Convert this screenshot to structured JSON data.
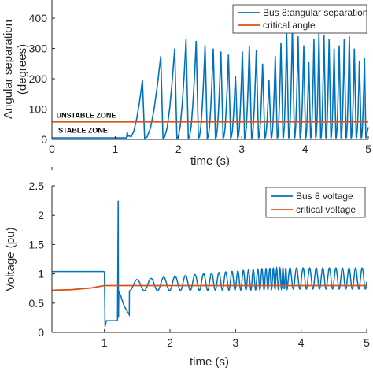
{
  "colors": {
    "angle": "#0072BD",
    "critical": "#D95319",
    "axis": "#262626"
  },
  "chart_data": [
    {
      "type": "line",
      "xlabel": "time (s)",
      "ylabel": "Angular separation (degrees)",
      "ylabel_lines": [
        "Angular separation",
        "(degrees)"
      ],
      "xlim": [
        0,
        5
      ],
      "ylim": [
        0,
        460
      ],
      "xticks": [
        0,
        1,
        2,
        3,
        4,
        5
      ],
      "yticks": [
        0,
        100,
        200,
        300,
        400
      ],
      "legend": "top-right",
      "annotations": [
        {
          "text": "UNSTABLE ZONE",
          "x": 0.02,
          "y": 82
        },
        {
          "text": "STABLE ZONE",
          "x": 0.05,
          "y": 32
        }
      ],
      "series": [
        {
          "name": "Bus 8:angular separation",
          "x_start": 0,
          "x_end": 5,
          "baseline": 5,
          "fault_time": 1.2,
          "peak_times": [
            1.43,
            1.72,
            1.94,
            2.12,
            2.28,
            2.42,
            2.55,
            2.67,
            2.79,
            2.9,
            3.01,
            3.12,
            3.23,
            3.33,
            3.43,
            3.53,
            3.62,
            3.71,
            3.8,
            3.89,
            3.98,
            4.06,
            4.14,
            4.22,
            4.3,
            4.38,
            4.46,
            4.54,
            4.62,
            4.7,
            4.78,
            4.86,
            4.94
          ],
          "peak_values": [
            195,
            275,
            300,
            330,
            325,
            310,
            300,
            290,
            280,
            210,
            290,
            310,
            295,
            250,
            195,
            275,
            320,
            350,
            370,
            340,
            310,
            255,
            330,
            350,
            345,
            330,
            300,
            310,
            330,
            340,
            300,
            260,
            270
          ]
        },
        {
          "name": "critical angle",
          "x": [
            0,
            5
          ],
          "values": [
            58,
            58
          ]
        }
      ]
    },
    {
      "type": "line",
      "xlabel": "time (s)",
      "ylabel": "Voltage (pu)",
      "xlim": [
        0.2,
        5
      ],
      "ylim": [
        0,
        2.5
      ],
      "xticks": [
        1,
        2,
        3,
        4,
        5
      ],
      "yticks": [
        0,
        0.5,
        1,
        1.5,
        2,
        2.5
      ],
      "legend": "top-right",
      "series": [
        {
          "name": "Bus 8 voltage",
          "x": [
            0.2,
            0.99,
            1.0,
            1.01,
            1.03,
            1.2,
            1.21,
            1.215,
            1.22,
            1.25,
            1.3,
            1.38
          ],
          "values": [
            1.04,
            1.04,
            1.03,
            0.1,
            0.2,
            0.2,
            2.25,
            0.25,
            0.7,
            0.62,
            0.45,
            0.3
          ],
          "oscillation_center": 0.8,
          "amplitude_start": 0.18,
          "amplitude_end": 0.36,
          "oscillation_start": 1.38
        },
        {
          "name": "critical voltage",
          "x": [
            0.2,
            0.5,
            0.8,
            1.0,
            5.0
          ],
          "values": [
            0.72,
            0.73,
            0.76,
            0.8,
            0.8
          ]
        }
      ]
    }
  ]
}
